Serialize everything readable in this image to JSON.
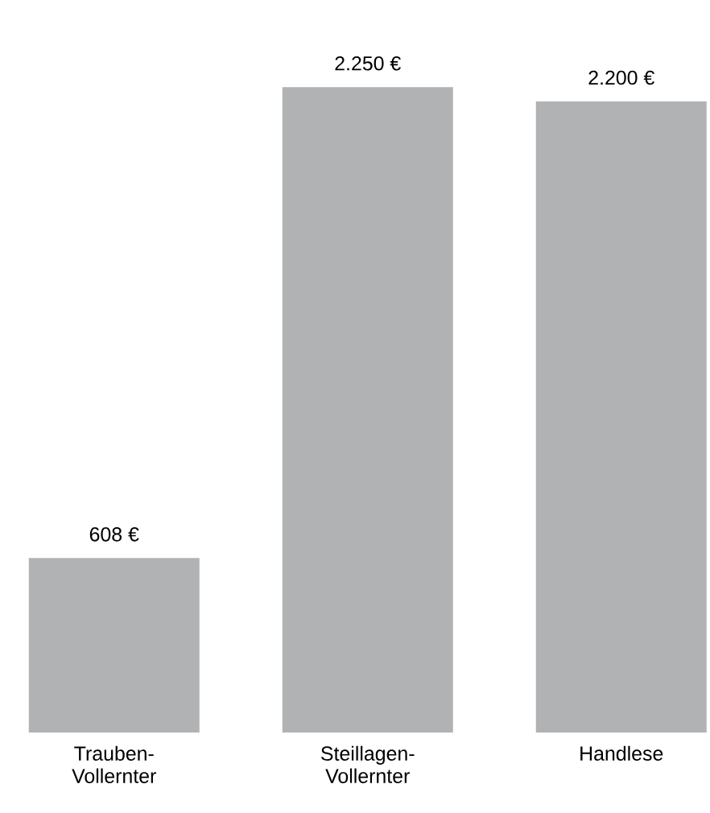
{
  "chart_data": {
    "type": "bar",
    "categories": [
      "Trauben-Vollernter",
      "Steillagen-Vollernter",
      "Handlese"
    ],
    "values": [
      608,
      2250,
      2200
    ],
    "value_labels": [
      "608 €",
      "2.250 €",
      "2.200 €"
    ],
    "color": "#b1b2b4"
  }
}
